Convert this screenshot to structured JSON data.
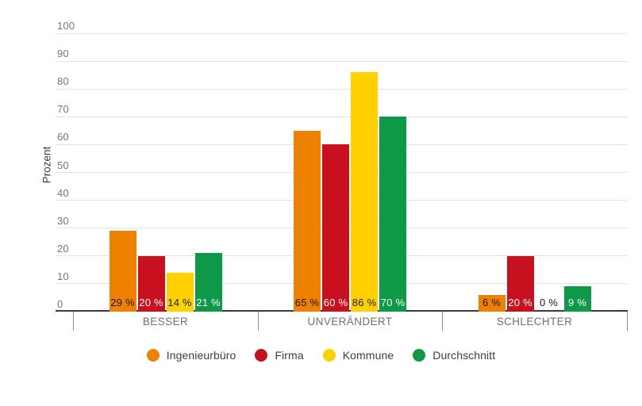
{
  "chart_data": {
    "type": "bar",
    "title": "",
    "ylabel": "Prozent",
    "xlabel": "",
    "ylim": [
      0,
      100
    ],
    "yticks": [
      0,
      10,
      20,
      30,
      40,
      50,
      60,
      70,
      80,
      90,
      100
    ],
    "grid": true,
    "legend_position": "bottom",
    "value_suffix": " %",
    "categories": [
      "BESSER",
      "UNVERÄNDERT",
      "SCHLECHTER"
    ],
    "series": [
      {
        "name": "Ingenieurbüro",
        "color": "#EE8100",
        "label_color": "#221200",
        "values": [
          29,
          65,
          6
        ]
      },
      {
        "name": "Firma",
        "color": "#C8101E",
        "label_color": "#FFFFFF",
        "values": [
          20,
          60,
          20
        ]
      },
      {
        "name": "Kommune",
        "color": "#FFD100",
        "label_color": "#1A1A1A",
        "values": [
          14,
          86,
          0
        ]
      },
      {
        "name": "Durchschnitt",
        "color": "#0D9948",
        "label_color": "#FFFFFF",
        "values": [
          21,
          70,
          9
        ]
      }
    ],
    "zero_value_label_color": "#1A1A1A"
  }
}
